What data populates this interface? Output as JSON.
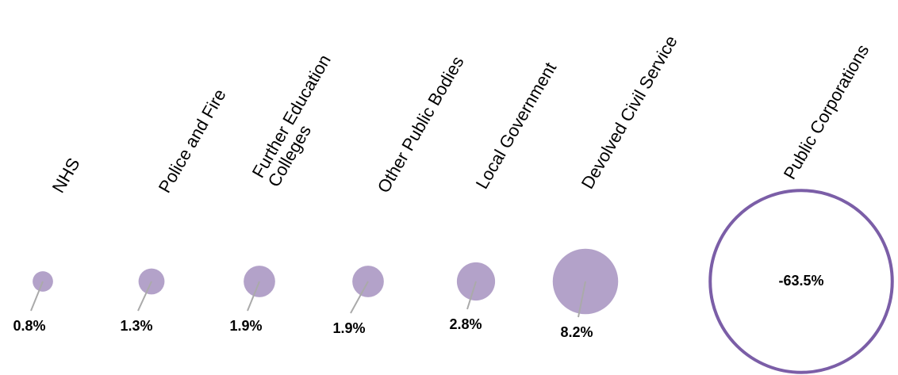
{
  "chart_data": {
    "type": "bubble",
    "categories": [
      "NHS",
      "Police and Fire",
      [
        "Further Education",
        "Colleges"
      ],
      "Other Public Bodies",
      "Local Government",
      "Devolved Civil Service",
      "Public Corporations"
    ],
    "values": [
      0.8,
      1.3,
      1.9,
      1.9,
      2.8,
      8.2,
      -63.5
    ],
    "value_labels": [
      "0.8%",
      "1.3%",
      "1.9%",
      "1.9%",
      "2.8%",
      "8.2%",
      "-63.5%"
    ],
    "color": "#b3a2c9",
    "negative_color": "#7b5ea7"
  }
}
